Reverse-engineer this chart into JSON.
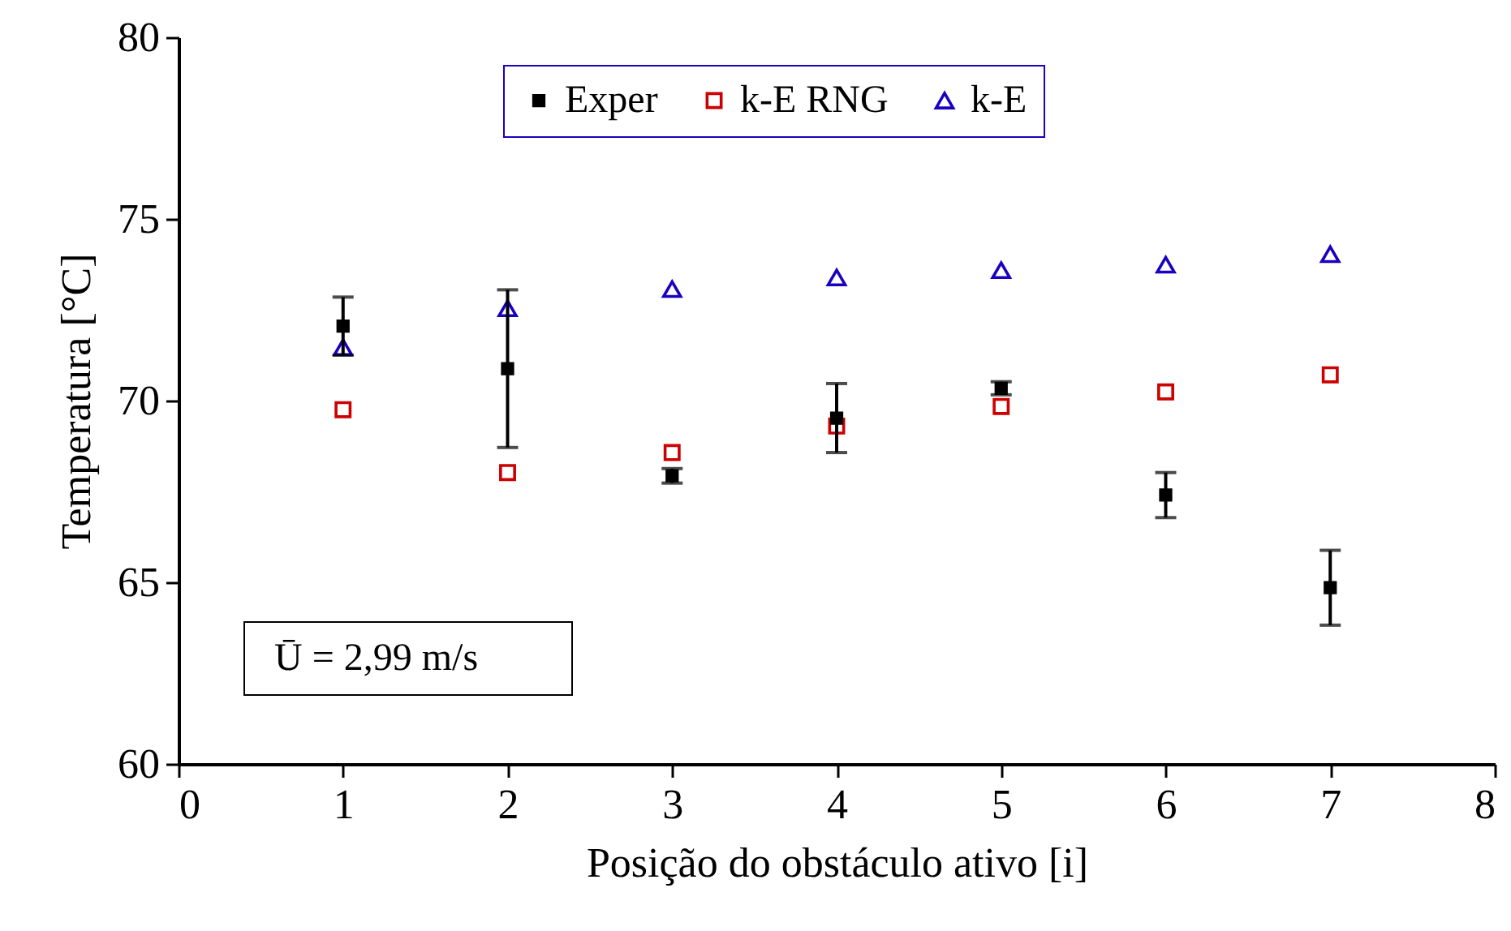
{
  "chart_data": {
    "type": "scatter",
    "xlabel": "Posição do obstáculo ativo [i]",
    "ylabel": "Temperatura [°C]",
    "x": [
      1,
      2,
      3,
      4,
      5,
      6,
      7
    ],
    "series": [
      {
        "name": "Exper",
        "color": "#000000",
        "marker": "square",
        "values": [
          72.05,
          70.88,
          67.93,
          69.52,
          70.34,
          67.4,
          64.85
        ],
        "errors": [
          0.8,
          2.17,
          0.2,
          0.95,
          0.18,
          0.62,
          1.03
        ]
      },
      {
        "name": "k-E RNG",
        "color": "#cc0000",
        "marker": "square",
        "values": [
          69.75,
          68.02,
          68.57,
          69.3,
          69.84,
          70.24,
          70.71
        ]
      },
      {
        "name": "k-E",
        "color": "#1a00c0",
        "marker": "triangle",
        "values": [
          71.47,
          72.54,
          73.07,
          73.39,
          73.59,
          73.74,
          74.03
        ]
      }
    ],
    "xlim": [
      0,
      8
    ],
    "xticks": [
      0,
      1,
      2,
      3,
      4,
      5,
      6,
      7,
      8
    ],
    "ylim": [
      60,
      80
    ],
    "yticks": [
      60,
      65,
      70,
      75,
      80
    ],
    "legend": "top",
    "annotations": [
      "Ū = 2,99 m/s"
    ]
  }
}
